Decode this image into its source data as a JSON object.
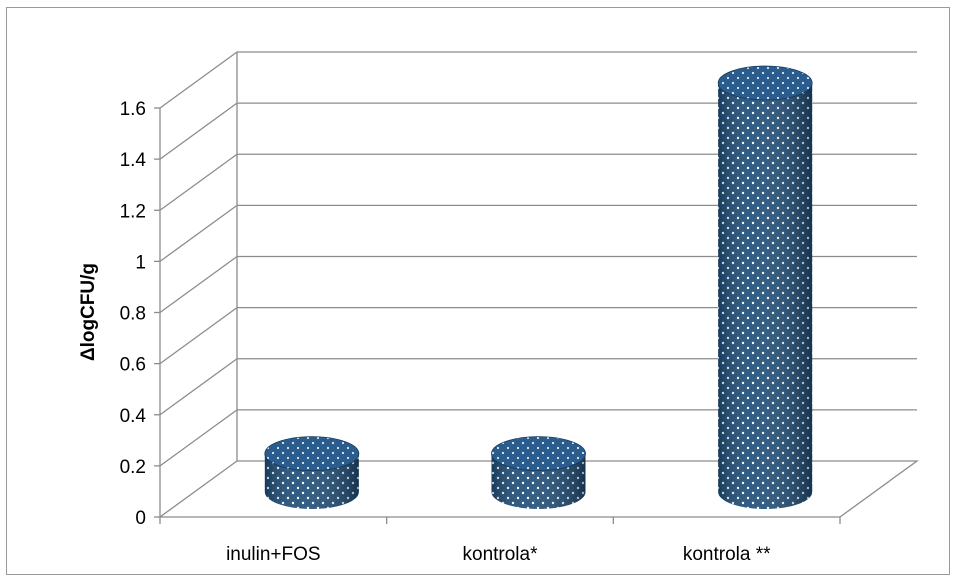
{
  "chart_data": {
    "type": "bar",
    "style": "3d-cylinder",
    "categories": [
      "inulin+FOS",
      "kontrola*",
      "kontrola **"
    ],
    "values": [
      0.15,
      0.15,
      1.6
    ],
    "ylabel": "ΔlogCFU/g",
    "xlabel": "",
    "ylim": [
      0,
      1.6
    ],
    "yticks": [
      "0",
      "0.2",
      "0.4",
      "0.6",
      "0.8",
      "1",
      "1.2",
      "1.4",
      "1.6"
    ],
    "grid": true,
    "legend": "none",
    "bar_color": "#1f4e79",
    "dot_color": "#ffffff"
  }
}
